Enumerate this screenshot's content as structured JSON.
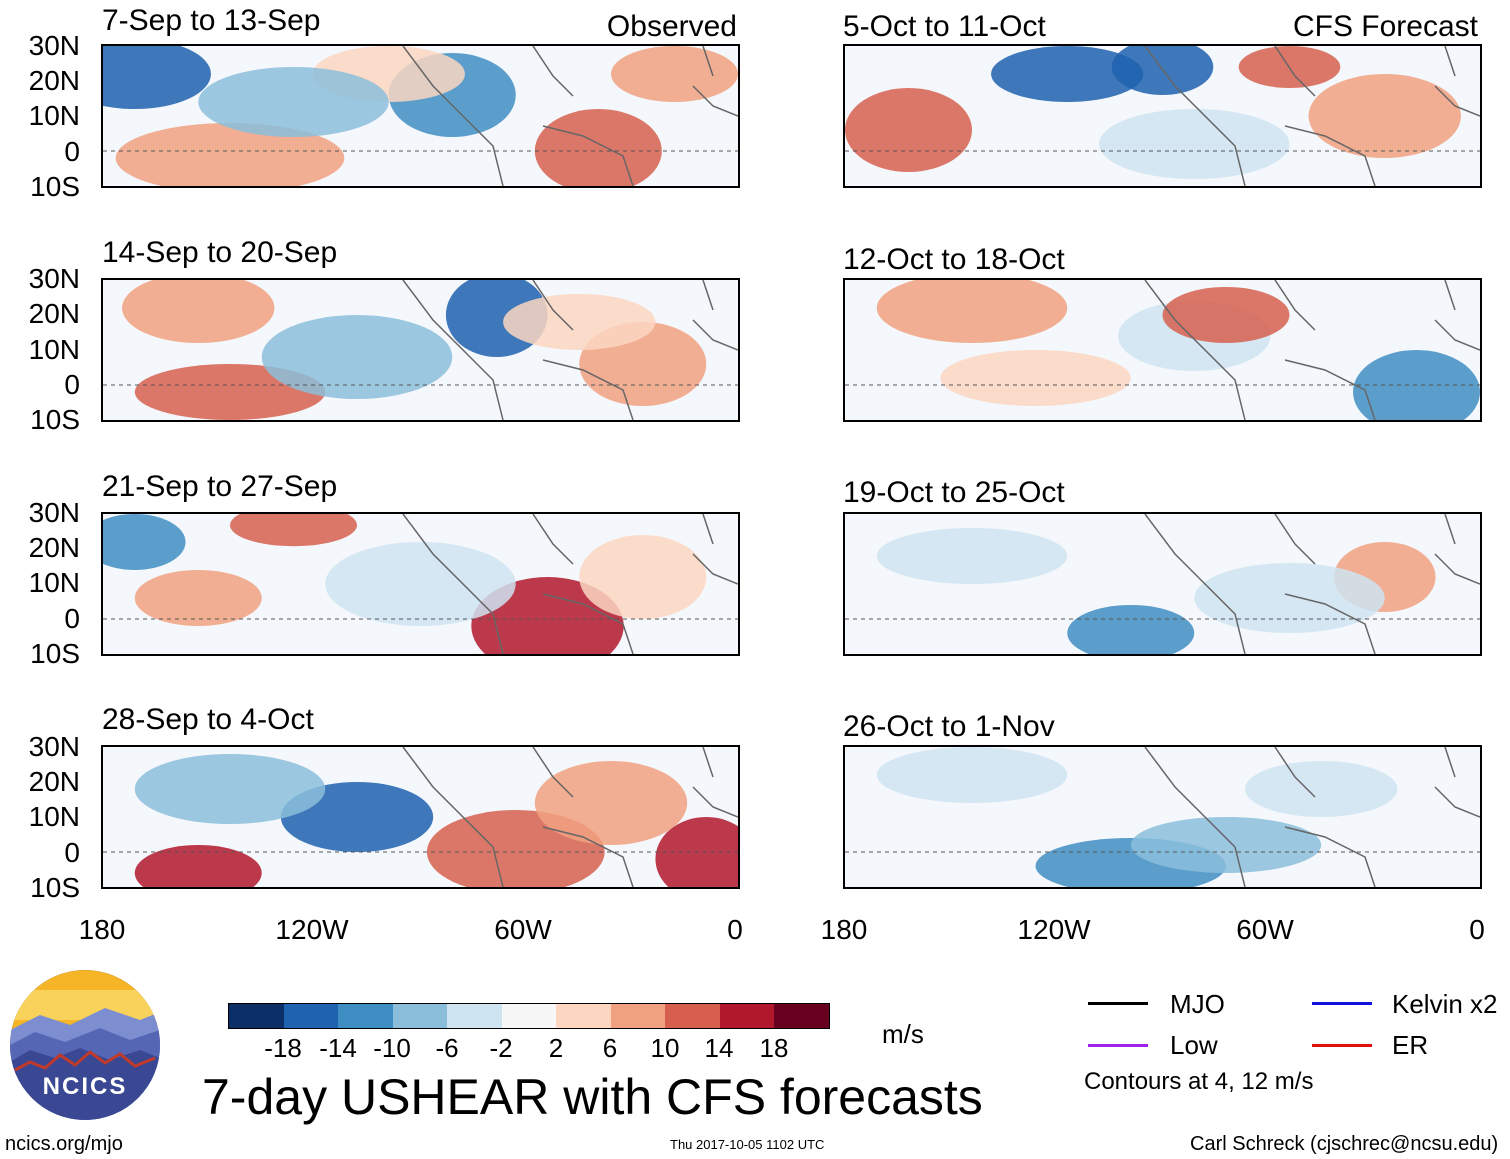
{
  "title": "7-day USHEAR with CFS forecasts",
  "units": "m/s",
  "left_label": "Observed",
  "right_label": "CFS Forecast",
  "lat_labels": [
    "30N",
    "20N",
    "10N",
    "0",
    "10S"
  ],
  "lon_labels": [
    "180",
    "120W",
    "60W",
    "0"
  ],
  "observed_periods": [
    "7-Sep to 13-Sep",
    "14-Sep to 20-Sep",
    "21-Sep to 27-Sep",
    "28-Sep to 4-Oct"
  ],
  "forecast_periods": [
    "5-Oct to 11-Oct",
    "12-Oct to 18-Oct",
    "19-Oct to 25-Oct",
    "26-Oct to 1-Nov"
  ],
  "colorbar": {
    "ticks": [
      "-18",
      "-14",
      "-10",
      "-6",
      "-2",
      "2",
      "6",
      "10",
      "14",
      "18"
    ],
    "colors": [
      "#0b2f66",
      "#1f62ae",
      "#3f8ec3",
      "#8bbedb",
      "#cfe4f1",
      "#f7f7f7",
      "#fcd6c1",
      "#f0a180",
      "#d6604d",
      "#b2182b",
      "#67001f"
    ]
  },
  "legend": {
    "items": [
      {
        "label": "MJO",
        "color": "#000000"
      },
      {
        "label": "Kelvin x2",
        "color": "#1010e0"
      },
      {
        "label": "Low",
        "color": "#a020f0"
      },
      {
        "label": "ER",
        "color": "#e01010"
      }
    ],
    "note": "Contours at 4, 12 m/s"
  },
  "logo_text": "NCICS",
  "footer": {
    "left": "ncics.org/mjo",
    "center": "Thu 2017-10-05 1102 UTC",
    "right": "Carl Schreck (cjschrec@ncsu.edu)"
  }
}
